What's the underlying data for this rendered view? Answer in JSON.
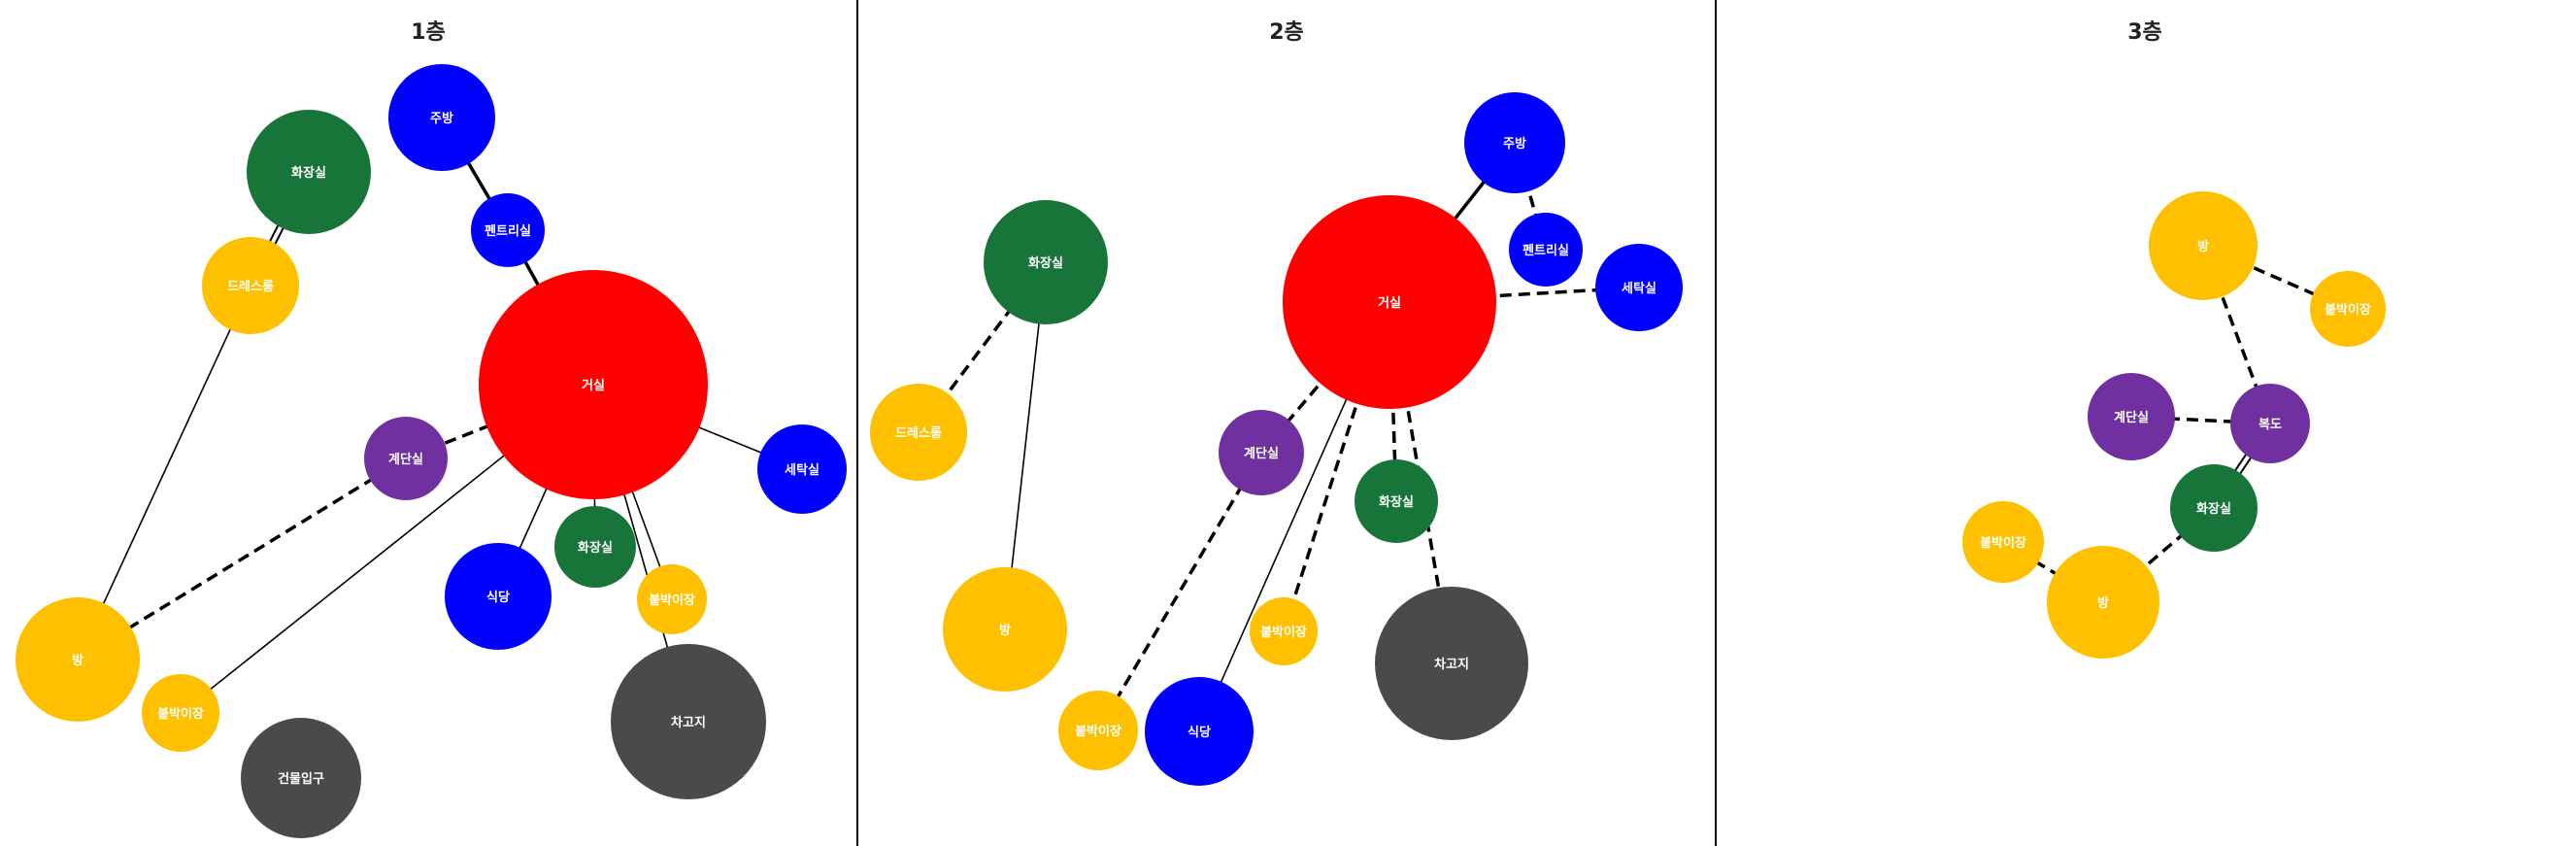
{
  "colors": {
    "living": "#FF0000",
    "kitchen": "#0000FF",
    "bathroom": "#18753A",
    "bedroom": "#FFC000",
    "circulation": "#7030A0",
    "service": "#4A4A4A",
    "edge": "#000000"
  },
  "floors": [
    {
      "title": "1층",
      "nodes": [
        {
          "id": "f1-kitchen",
          "label": "주방",
          "color": "kitchen"
        },
        {
          "id": "f1-bath-top",
          "label": "화장실",
          "color": "bathroom"
        },
        {
          "id": "f1-pantry",
          "label": "펜트리실",
          "color": "kitchen"
        },
        {
          "id": "f1-dress",
          "label": "드레스룸",
          "color": "bedroom"
        },
        {
          "id": "f1-living",
          "label": "거실",
          "color": "living"
        },
        {
          "id": "f1-stairs",
          "label": "계단실",
          "color": "circulation"
        },
        {
          "id": "f1-laundry",
          "label": "세탁실",
          "color": "kitchen"
        },
        {
          "id": "f1-bath-mid",
          "label": "화장실",
          "color": "bathroom"
        },
        {
          "id": "f1-dining",
          "label": "식당",
          "color": "kitchen"
        },
        {
          "id": "f1-closet-r",
          "label": "붙박이장",
          "color": "bedroom"
        },
        {
          "id": "f1-room",
          "label": "방",
          "color": "bedroom"
        },
        {
          "id": "f1-closet-l",
          "label": "붙박이장",
          "color": "bedroom"
        },
        {
          "id": "f1-garage",
          "label": "차고지",
          "color": "service"
        },
        {
          "id": "f1-entrance",
          "label": "건물입구",
          "color": "service"
        }
      ],
      "edges": [
        {
          "from": "f1-kitchen",
          "to": "f1-pantry",
          "style": "solid"
        },
        {
          "from": "f1-pantry",
          "to": "f1-living",
          "style": "solid"
        },
        {
          "from": "f1-bath-top",
          "to": "f1-dress",
          "style": "double"
        },
        {
          "from": "f1-dress",
          "to": "f1-room",
          "style": "thin"
        },
        {
          "from": "f1-living",
          "to": "f1-stairs",
          "style": "dashed"
        },
        {
          "from": "f1-stairs",
          "to": "f1-room",
          "style": "dashed"
        },
        {
          "from": "f1-living",
          "to": "f1-laundry",
          "style": "thin"
        },
        {
          "from": "f1-living",
          "to": "f1-dining",
          "style": "thin"
        },
        {
          "from": "f1-living",
          "to": "f1-bath-mid",
          "style": "thin"
        },
        {
          "from": "f1-living",
          "to": "f1-closet-r",
          "style": "thin"
        },
        {
          "from": "f1-living",
          "to": "f1-garage",
          "style": "thin"
        },
        {
          "from": "f1-living",
          "to": "f1-closet-l",
          "style": "thin"
        }
      ]
    },
    {
      "title": "2층",
      "nodes": [
        {
          "id": "f2-kitchen",
          "label": "주방",
          "color": "kitchen"
        },
        {
          "id": "f2-bath-top",
          "label": "화장실",
          "color": "bathroom"
        },
        {
          "id": "f2-pantry",
          "label": "펜트리실",
          "color": "kitchen"
        },
        {
          "id": "f2-living",
          "label": "거실",
          "color": "living"
        },
        {
          "id": "f2-laundry",
          "label": "세탁실",
          "color": "kitchen"
        },
        {
          "id": "f2-dress",
          "label": "드레스룸",
          "color": "bedroom"
        },
        {
          "id": "f2-stairs",
          "label": "계단실",
          "color": "circulation"
        },
        {
          "id": "f2-bath-mid",
          "label": "화장실",
          "color": "bathroom"
        },
        {
          "id": "f2-room",
          "label": "방",
          "color": "bedroom"
        },
        {
          "id": "f2-closet-m",
          "label": "붙박이장",
          "color": "bedroom"
        },
        {
          "id": "f2-garage",
          "label": "차고지",
          "color": "service"
        },
        {
          "id": "f2-closet-l",
          "label": "붙박이장",
          "color": "bedroom"
        },
        {
          "id": "f2-dining",
          "label": "식당",
          "color": "kitchen"
        }
      ],
      "edges": [
        {
          "from": "f2-kitchen",
          "to": "f2-living",
          "style": "solid"
        },
        {
          "from": "f2-kitchen",
          "to": "f2-pantry",
          "style": "dashed"
        },
        {
          "from": "f2-living",
          "to": "f2-laundry",
          "style": "dashed"
        },
        {
          "from": "f2-bath-top",
          "to": "f2-dress",
          "style": "dashed"
        },
        {
          "from": "f2-bath-top",
          "to": "f2-room",
          "style": "thin"
        },
        {
          "from": "f2-living",
          "to": "f2-stairs",
          "style": "dashed"
        },
        {
          "from": "f2-stairs",
          "to": "f2-closet-l",
          "style": "dashed"
        },
        {
          "from": "f2-living",
          "to": "f2-dining",
          "style": "thin"
        },
        {
          "from": "f2-living",
          "to": "f2-closet-m",
          "style": "dashed"
        },
        {
          "from": "f2-living",
          "to": "f2-bath-mid",
          "style": "dashed"
        },
        {
          "from": "f2-living",
          "to": "f2-garage",
          "style": "dashed"
        }
      ]
    },
    {
      "title": "3층",
      "nodes": [
        {
          "id": "f3-room-top",
          "label": "방",
          "color": "bedroom"
        },
        {
          "id": "f3-closet-r",
          "label": "붙박이장",
          "color": "bedroom"
        },
        {
          "id": "f3-stairs",
          "label": "계단실",
          "color": "circulation"
        },
        {
          "id": "f3-hall",
          "label": "복도",
          "color": "circulation"
        },
        {
          "id": "f3-bath",
          "label": "화장실",
          "color": "bathroom"
        },
        {
          "id": "f3-closet-l",
          "label": "붙박이장",
          "color": "bedroom"
        },
        {
          "id": "f3-room-bot",
          "label": "방",
          "color": "bedroom"
        }
      ],
      "edges": [
        {
          "from": "f3-room-top",
          "to": "f3-closet-r",
          "style": "dashed"
        },
        {
          "from": "f3-room-top",
          "to": "f3-hall",
          "style": "dashed"
        },
        {
          "from": "f3-stairs",
          "to": "f3-hall",
          "style": "dashed"
        },
        {
          "from": "f3-hall",
          "to": "f3-bath",
          "style": "double"
        },
        {
          "from": "f3-bath",
          "to": "f3-room-bot",
          "style": "dashed"
        },
        {
          "from": "f3-closet-l",
          "to": "f3-room-bot",
          "style": "dashed"
        }
      ]
    }
  ]
}
